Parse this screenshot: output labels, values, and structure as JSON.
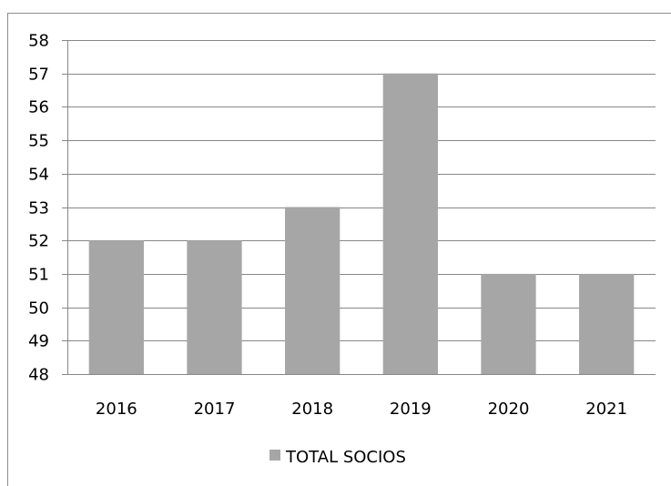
{
  "chart_data": {
    "type": "bar",
    "categories": [
      "2016",
      "2017",
      "2018",
      "2019",
      "2020",
      "2021"
    ],
    "series": [
      {
        "name": "TOTAL SOCIOS",
        "values": [
          52,
          52,
          53,
          57,
          51,
          51
        ],
        "color": "#a6a6a6"
      }
    ],
    "ylim": [
      48,
      58
    ],
    "yticks": [
      48,
      49,
      50,
      51,
      52,
      53,
      54,
      55,
      56,
      57,
      58
    ],
    "grid": true,
    "legend": "bottom",
    "title": "",
    "xlabel": "",
    "ylabel": ""
  }
}
